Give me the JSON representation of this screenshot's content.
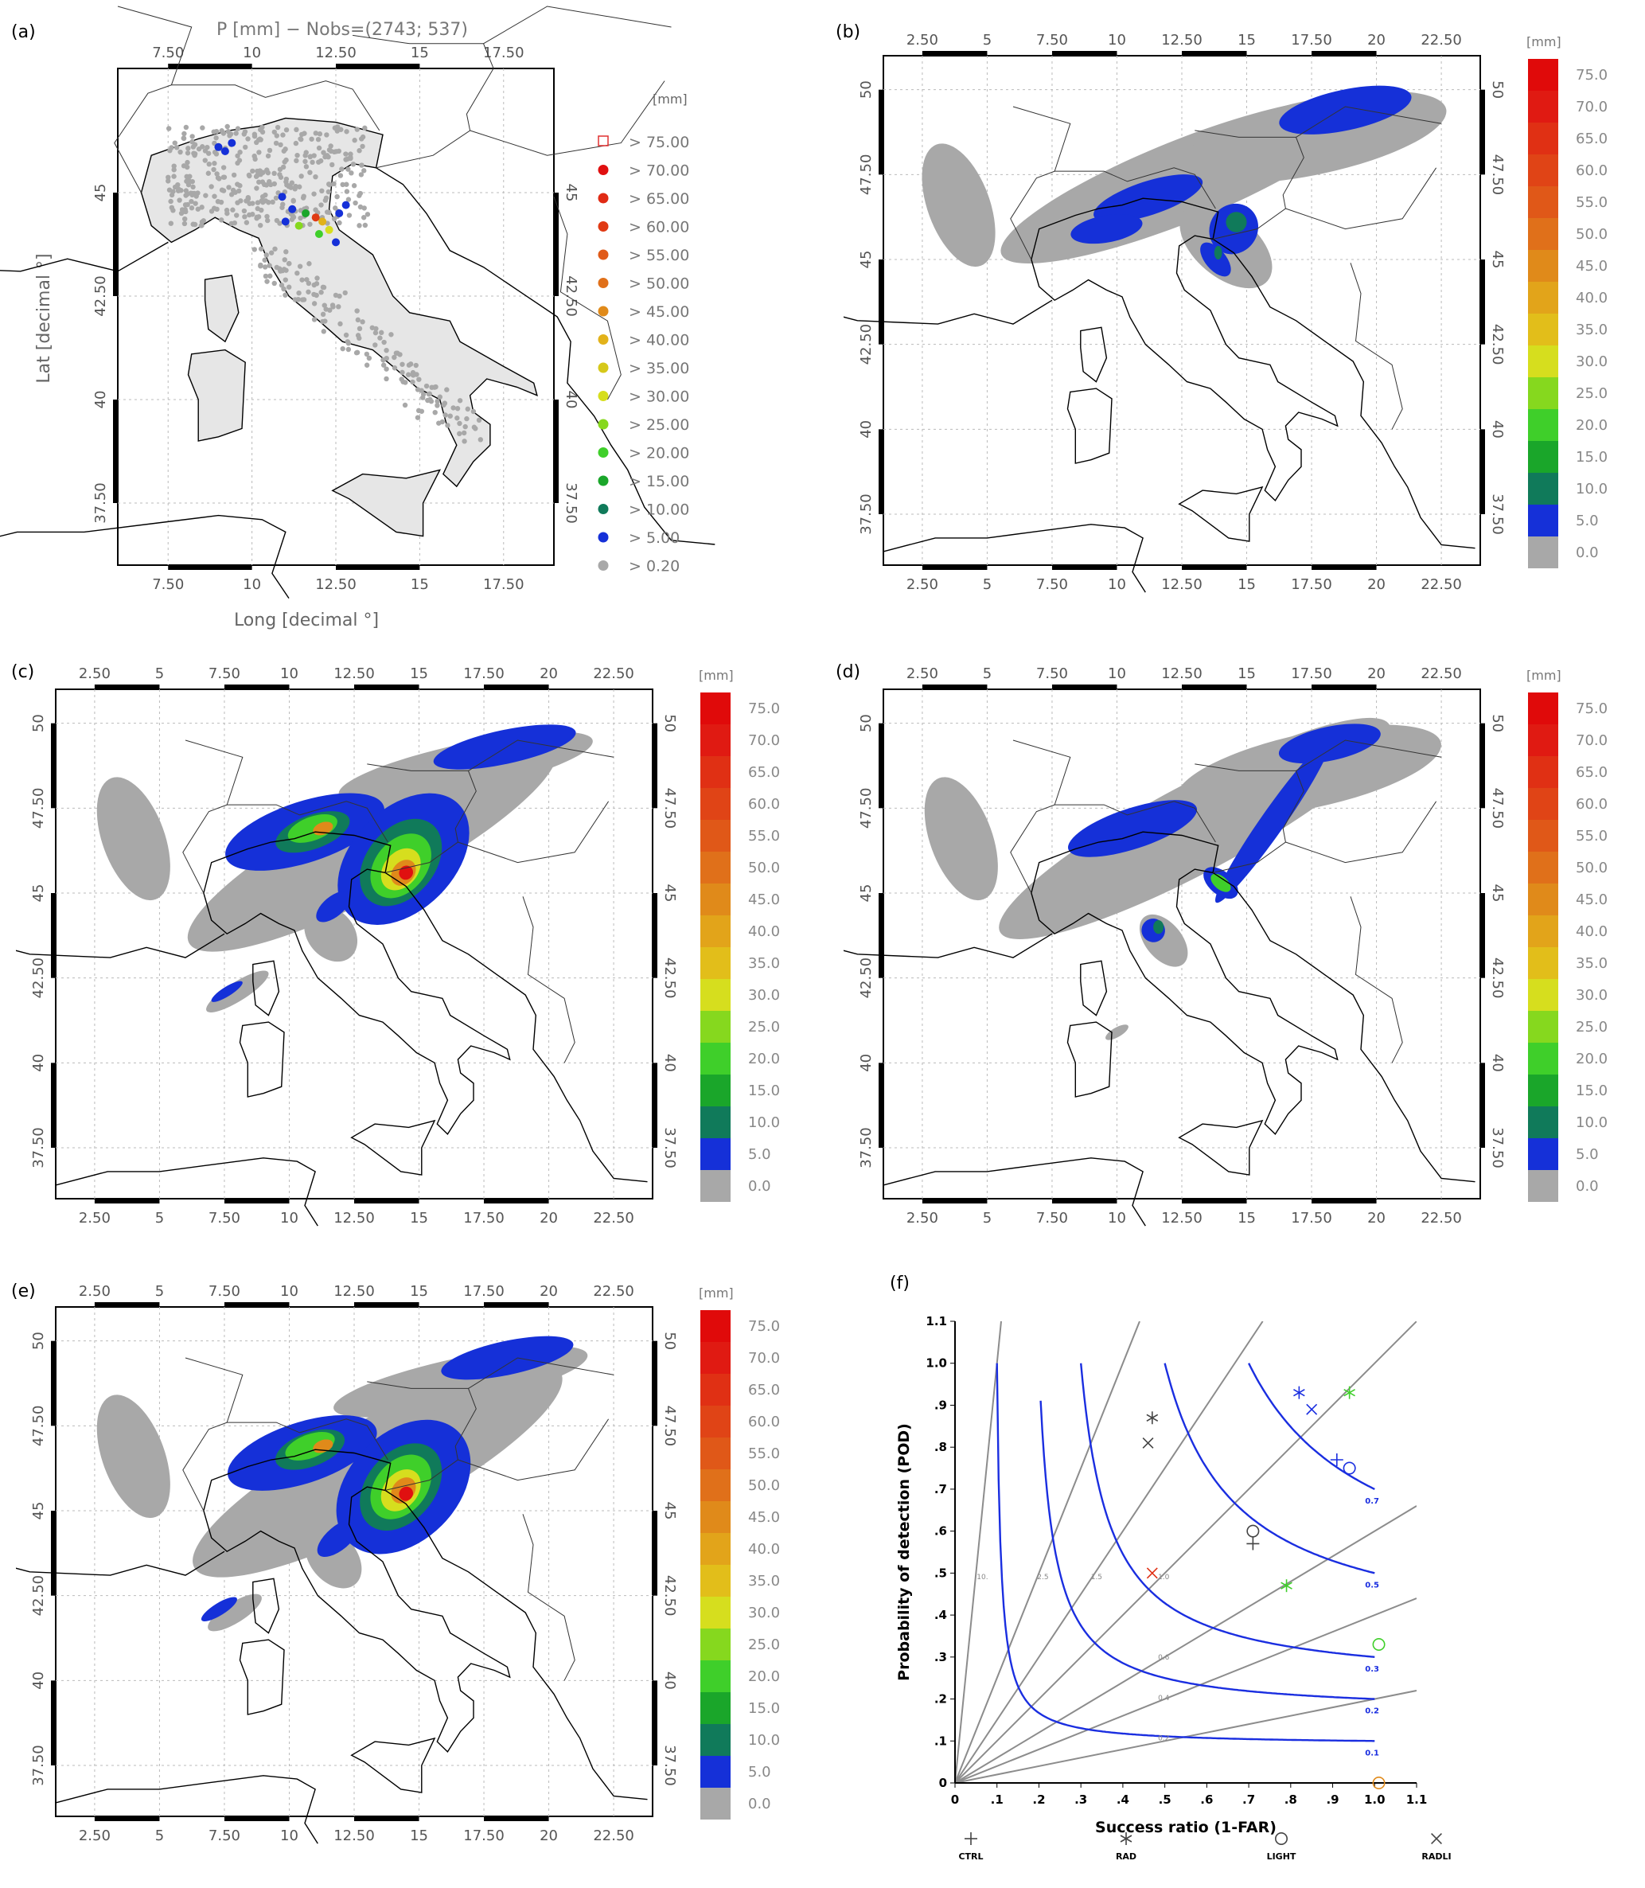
{
  "panels": {
    "a": {
      "label": "(a)",
      "title": "P [mm] − Nobs=(2743; 537)",
      "xlabel": "Long [decimal °]",
      "ylabel": "Lat [decimal °]"
    },
    "b": {
      "label": "(b)"
    },
    "c": {
      "label": "(c)"
    },
    "d": {
      "label": "(d)"
    },
    "e": {
      "label": "(e)"
    },
    "f": {
      "label": "(f)"
    }
  },
  "colors": {
    "gray": "#a8a8a8",
    "land": "#e6e6e6",
    "blue": "#1530d8",
    "teal": "#107a5a",
    "green1": "#1aa62a",
    "green2": "#3fcf2a",
    "green3": "#86d81e",
    "yellow": "#d6de1e",
    "orange1": "#e2b21a",
    "orange2": "#e08a1a",
    "red1": "#e03a14",
    "red2": "#e01010",
    "csi_curve": "#1a2ee0",
    "bias_line": "#8c8c8c"
  },
  "chart_data": [
    {
      "panel": "a",
      "type": "scatter",
      "title": "P [mm] − Nobs=(2743; 537)",
      "xlabel": "Long [decimal °]",
      "ylabel": "Lat [decimal °]",
      "xticks": [
        "7.50",
        "10",
        "12.50",
        "15",
        "17.50"
      ],
      "yticks": [
        "45",
        "42.50",
        "40",
        "37.50"
      ],
      "xlim": [
        6,
        19
      ],
      "ylim": [
        36,
        48
      ],
      "legend": {
        "unit": "[mm]",
        "entries": [
          {
            "label": ">  75.00",
            "color": "#e03030",
            "marker": "open-square"
          },
          {
            "label": ">  70.00",
            "color": "#e01010"
          },
          {
            "label": ">  65.00",
            "color": "#e02a14"
          },
          {
            "label": ">  60.00",
            "color": "#e03a14"
          },
          {
            "label": ">  55.00",
            "color": "#e05a18"
          },
          {
            "label": ">  50.00",
            "color": "#e0701a"
          },
          {
            "label": ">  45.00",
            "color": "#e08a1a"
          },
          {
            "label": ">  40.00",
            "color": "#e2b21a"
          },
          {
            "label": ">  35.00",
            "color": "#d6c81a"
          },
          {
            "label": ">  30.00",
            "color": "#d6de1e"
          },
          {
            "label": ">  25.00",
            "color": "#86d81e"
          },
          {
            "label": ">  20.00",
            "color": "#3fcf2a"
          },
          {
            "label": ">  15.00",
            "color": "#1aa62a"
          },
          {
            "label": ">  10.00",
            "color": "#107a5a"
          },
          {
            "label": ">   5.00",
            "color": "#1530d8"
          },
          {
            "label": ">   0.20",
            "color": "#a8a8a8"
          }
        ]
      }
    },
    {
      "panel": "b-e",
      "type": "heatmap",
      "xticks": [
        "2.50",
        "5",
        "7.50",
        "10",
        "12.50",
        "15",
        "17.50",
        "20",
        "22.50"
      ],
      "yticks": [
        "50",
        "47.50",
        "45",
        "42.50",
        "40",
        "37.50"
      ],
      "xlim": [
        1,
        24
      ],
      "ylim": [
        36,
        51
      ],
      "colorbar": {
        "unit": "[mm]",
        "levels": [
          "75.0",
          "70.0",
          "65.0",
          "60.0",
          "55.0",
          "50.0",
          "45.0",
          "40.0",
          "35.0",
          "30.0",
          "25.0",
          "20.0",
          "15.0",
          "10.0",
          "5.0",
          "0.0"
        ],
        "colors": [
          "#e00a0a",
          "#e01a12",
          "#e03014",
          "#e04416",
          "#e05818",
          "#e0701a",
          "#e08a1a",
          "#e2a41a",
          "#e2be1a",
          "#d6de1e",
          "#86d81e",
          "#3fcf2a",
          "#1aa62a",
          "#107a5a",
          "#1530d8",
          "#a8a8a8"
        ]
      }
    },
    {
      "panel": "f",
      "type": "scatter",
      "title": "",
      "xlabel": "Success ratio (1-FAR)",
      "ylabel": "Probability of detection (POD)",
      "xlim": [
        0,
        1.1
      ],
      "ylim": [
        0,
        1.1
      ],
      "xticks": [
        "0",
        ".1",
        ".2",
        ".3",
        ".4",
        ".5",
        ".6",
        ".7",
        ".8",
        ".9",
        "1.0",
        "1.1"
      ],
      "yticks": [
        "0",
        ".1",
        ".2",
        ".3",
        ".4",
        ".5",
        ".6",
        ".7",
        ".8",
        ".9",
        "1.0",
        "1.1"
      ],
      "bias_lines": [
        {
          "bias": 10,
          "label": "10."
        },
        {
          "bias": 2.5,
          "label": "2.5"
        },
        {
          "bias": 1.5,
          "label": "1.5"
        },
        {
          "bias": 1.0,
          "label": "1.0"
        },
        {
          "bias": 0.6,
          "label": "0.6"
        },
        {
          "bias": 0.4,
          "label": "0.4"
        },
        {
          "bias": 0.2,
          "label": "0.2"
        }
      ],
      "csi_curves": [
        {
          "csi": 0.1,
          "label": "0.1"
        },
        {
          "csi": 0.2,
          "label": "0.2"
        },
        {
          "csi": 0.3,
          "label": "0.3"
        },
        {
          "csi": 0.5,
          "label": "0.5"
        },
        {
          "csi": 0.7,
          "label": "0.7"
        }
      ],
      "series": [
        {
          "name": "CTRL",
          "marker": "+",
          "points": [
            {
              "x": 0.71,
              "y": 0.57,
              "color": "#444444"
            },
            {
              "x": 0.91,
              "y": 0.77,
              "color": "#1a2ee0"
            }
          ]
        },
        {
          "name": "RAD",
          "marker": "*",
          "points": [
            {
              "x": 0.47,
              "y": 0.87,
              "color": "#444444"
            },
            {
              "x": 0.82,
              "y": 0.93,
              "color": "#1a2ee0"
            },
            {
              "x": 0.79,
              "y": 0.47,
              "color": "#3fcf2a"
            },
            {
              "x": 0.94,
              "y": 0.93,
              "color": "#3fcf2a"
            }
          ]
        },
        {
          "name": "LIGHT",
          "marker": "o",
          "points": [
            {
              "x": 0.71,
              "y": 0.6,
              "color": "#444444"
            },
            {
              "x": 0.94,
              "y": 0.75,
              "color": "#1a2ee0"
            },
            {
              "x": 1.01,
              "y": 0.33,
              "color": "#3fcf2a"
            },
            {
              "x": 1.01,
              "y": 0.0,
              "color": "#e08a1a"
            }
          ]
        },
        {
          "name": "RADLI",
          "marker": "x",
          "points": [
            {
              "x": 0.46,
              "y": 0.81,
              "color": "#444444"
            },
            {
              "x": 0.85,
              "y": 0.89,
              "color": "#1a2ee0"
            },
            {
              "x": 0.47,
              "y": 0.5,
              "color": "#e03014"
            }
          ]
        }
      ]
    }
  ]
}
